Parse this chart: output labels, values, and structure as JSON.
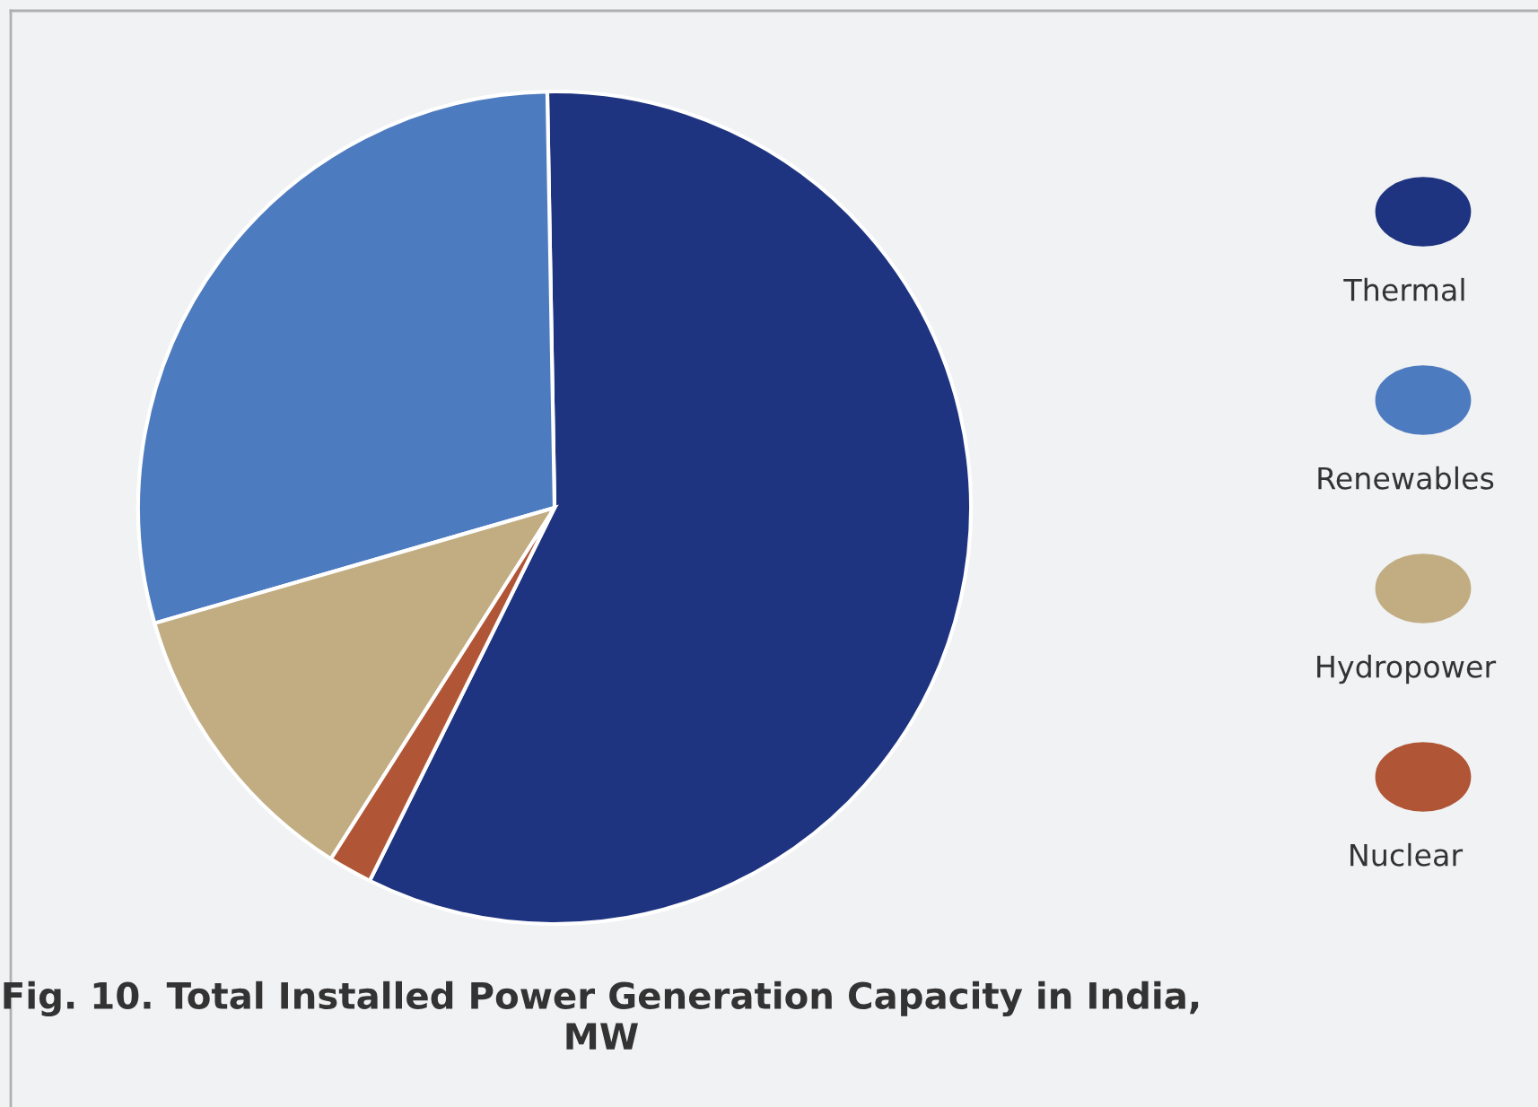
{
  "chart_data": {
    "type": "pie",
    "title": "Fig. 10. Total Installed Power Generation Capacity in India, MW",
    "categories": [
      "Thermal",
      "Renewables",
      "Hydropower",
      "Nuclear"
    ],
    "values": [
      57.6,
      29.2,
      11.5,
      1.7
    ],
    "colors": [
      "#1f3480",
      "#4d7bbf",
      "#c2ad83",
      "#b05535"
    ],
    "legend": "right"
  }
}
